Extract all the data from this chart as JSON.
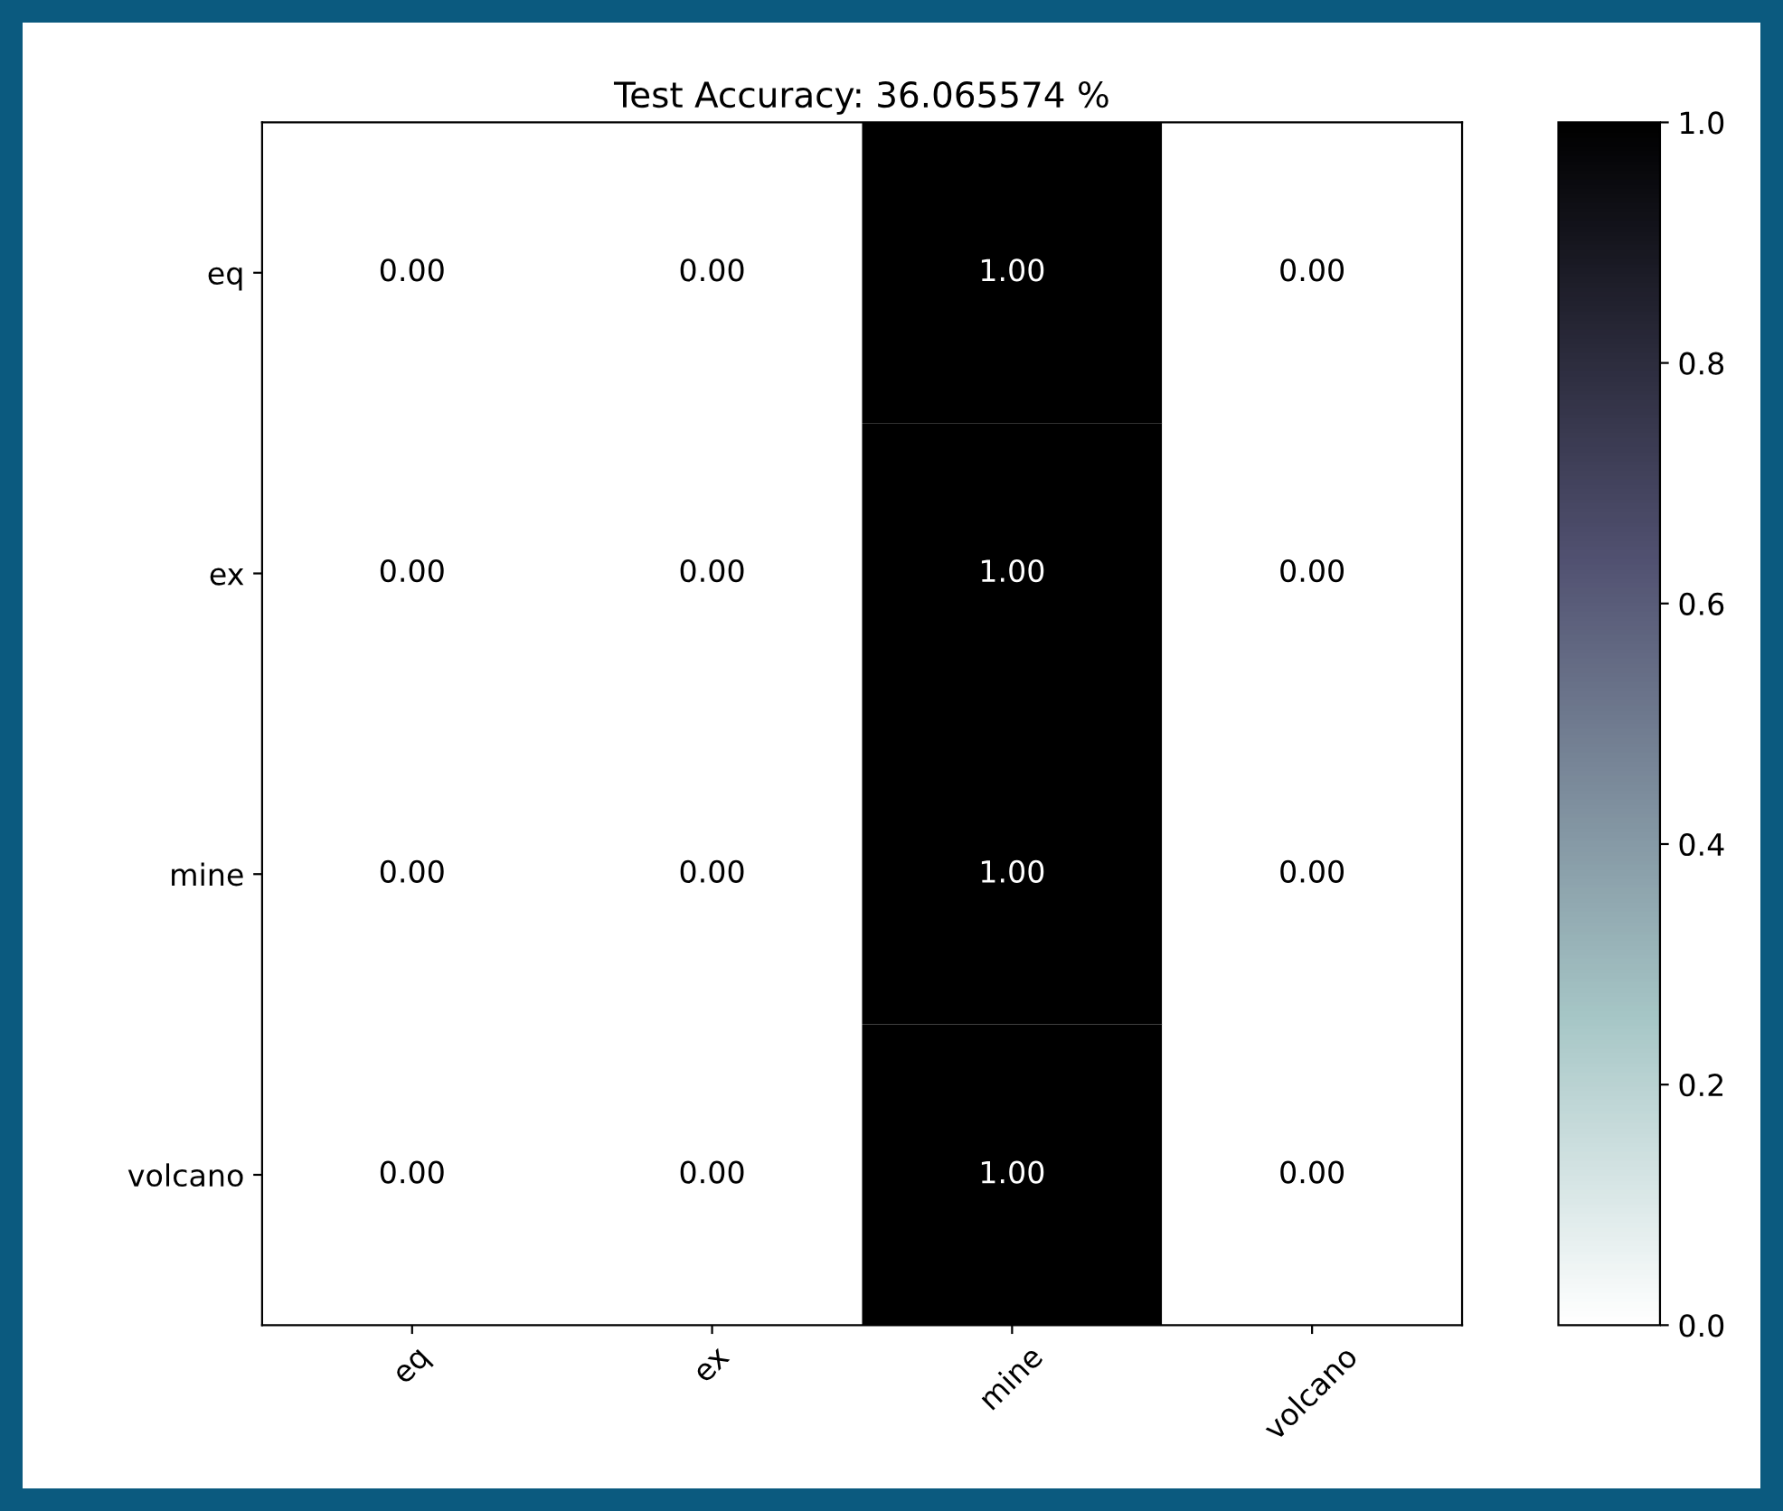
{
  "chart_data": {
    "type": "heatmap",
    "title": "Test Accuracy: 36.065574 %",
    "categories": [
      "eq",
      "ex",
      "mine",
      "volcano"
    ],
    "y_categories": [
      "eq",
      "ex",
      "mine",
      "volcano"
    ],
    "cells": [
      [
        0,
        0,
        1,
        0
      ],
      [
        0,
        0,
        1,
        0
      ],
      [
        0,
        0,
        1,
        0
      ],
      [
        0,
        0,
        1,
        0
      ]
    ],
    "cell_labels": [
      [
        "0.00",
        "0.00",
        "1.00",
        "0.00"
      ],
      [
        "0.00",
        "0.00",
        "1.00",
        "0.00"
      ],
      [
        "0.00",
        "0.00",
        "1.00",
        "0.00"
      ],
      [
        "0.00",
        "0.00",
        "1.00",
        "0.00"
      ]
    ],
    "clim": [
      0,
      1
    ],
    "cticks": [
      {
        "value": 0,
        "label": "0.0"
      },
      {
        "value": 0.2,
        "label": "0.2"
      },
      {
        "value": 0.4,
        "label": "0.4"
      },
      {
        "value": 0.6,
        "label": "0.6"
      },
      {
        "value": 0.8,
        "label": "0.8"
      },
      {
        "value": 1,
        "label": "1.0"
      }
    ]
  }
}
